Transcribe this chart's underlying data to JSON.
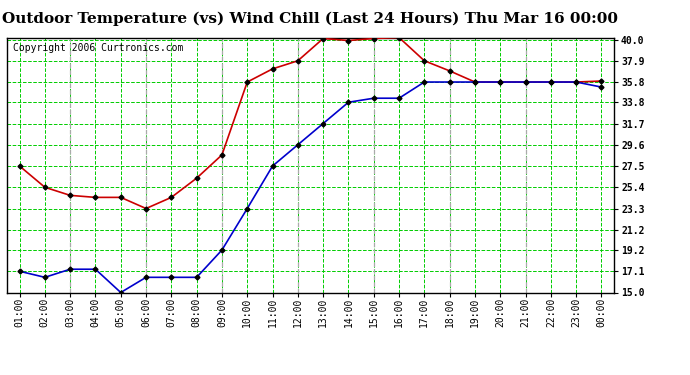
{
  "title": "Outdoor Temperature (vs) Wind Chill (Last 24 Hours) Thu Mar 16 00:00",
  "copyright": "Copyright 2006 Curtronics.com",
  "x_labels": [
    "01:00",
    "02:00",
    "03:00",
    "04:00",
    "05:00",
    "06:00",
    "07:00",
    "08:00",
    "09:00",
    "10:00",
    "11:00",
    "12:00",
    "13:00",
    "14:00",
    "15:00",
    "16:00",
    "17:00",
    "18:00",
    "19:00",
    "20:00",
    "21:00",
    "22:00",
    "23:00",
    "00:00"
  ],
  "red_data": [
    27.5,
    25.4,
    24.6,
    24.4,
    24.4,
    23.3,
    24.4,
    26.3,
    28.6,
    35.8,
    37.1,
    37.9,
    40.1,
    39.9,
    40.1,
    40.2,
    37.9,
    36.9,
    35.8,
    35.8,
    35.8,
    35.8,
    35.8,
    35.9
  ],
  "blue_data": [
    17.1,
    16.5,
    17.3,
    17.3,
    15.0,
    16.5,
    16.5,
    16.5,
    19.2,
    23.3,
    27.5,
    29.6,
    31.7,
    33.8,
    34.2,
    34.2,
    35.8,
    35.8,
    35.8,
    35.8,
    35.8,
    35.8,
    35.8,
    35.3
  ],
  "ylim": [
    15.0,
    40.2
  ],
  "yticks": [
    15.0,
    17.1,
    19.2,
    21.2,
    23.3,
    25.4,
    27.5,
    29.6,
    31.7,
    33.8,
    35.8,
    37.9,
    40.0
  ],
  "ytick_labels": [
    "15.0",
    "17.1",
    "19.2",
    "21.2",
    "23.3",
    "25.4",
    "27.5",
    "29.6",
    "31.7",
    "33.8",
    "35.8",
    "37.9",
    "40.0"
  ],
  "bg_color": "#ffffff",
  "plot_bg_color": "#ffffff",
  "grid_color": "#00cc00",
  "dash_gray_color": "#aaaaaa",
  "title_fontsize": 11,
  "copyright_fontsize": 7,
  "tick_fontsize": 7,
  "red_color": "#cc0000",
  "blue_color": "#0000cc",
  "marker": "D",
  "marker_size": 2.5,
  "line_width": 1.2,
  "gray_vline_indices": [
    2,
    5,
    8,
    11,
    14,
    17,
    20
  ]
}
